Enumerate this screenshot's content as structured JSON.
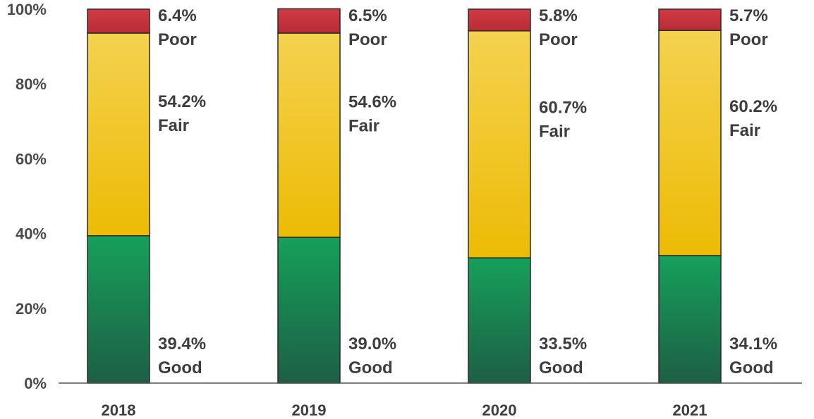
{
  "chart_data": {
    "type": "bar",
    "stacked": true,
    "categories": [
      "2018",
      "2019",
      "2020",
      "2021"
    ],
    "series": [
      {
        "name": "Good",
        "values": [
          39.4,
          39.0,
          33.5,
          34.1
        ],
        "color": "#1a9a55"
      },
      {
        "name": "Fair",
        "values": [
          54.2,
          54.6,
          60.7,
          60.2
        ],
        "color": "#f0c020"
      },
      {
        "name": "Poor",
        "values": [
          6.4,
          6.5,
          5.8,
          5.7
        ],
        "color": "#cc3340"
      }
    ],
    "data_labels": [
      [
        {
          "value": "39.4%",
          "name": "Good"
        },
        {
          "value": "54.2%",
          "name": "Fair"
        },
        {
          "value": "6.4%",
          "name": "Poor"
        }
      ],
      [
        {
          "value": "39.0%",
          "name": "Good"
        },
        {
          "value": "54.6%",
          "name": "Fair"
        },
        {
          "value": "6.5%",
          "name": "Poor"
        }
      ],
      [
        {
          "value": "33.5%",
          "name": "Good"
        },
        {
          "value": "60.7%",
          "name": "Fair"
        },
        {
          "value": "5.8%",
          "name": "Poor"
        }
      ],
      [
        {
          "value": "34.1%",
          "name": "Good"
        },
        {
          "value": "60.2%",
          "name": "Fair"
        },
        {
          "value": "5.7%",
          "name": "Poor"
        }
      ]
    ],
    "y_ticks": [
      "0%",
      "20%",
      "40%",
      "60%",
      "80%",
      "100%"
    ],
    "ylim": [
      0,
      100
    ],
    "grid": false,
    "legend": "none",
    "title": "",
    "xlabel": "",
    "ylabel": ""
  }
}
